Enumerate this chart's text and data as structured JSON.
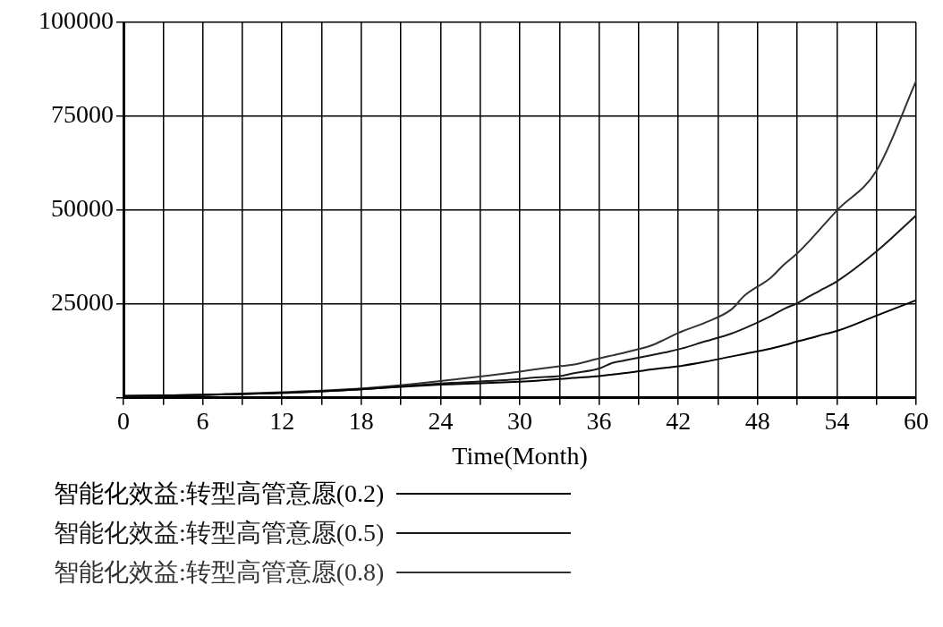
{
  "chart_data": {
    "type": "line",
    "xlabel": "Time(Month)",
    "x": [
      0,
      6,
      12,
      18,
      24,
      30,
      31,
      33,
      34,
      36,
      37,
      38,
      40,
      41,
      42,
      44,
      46,
      47,
      49,
      50,
      51,
      52,
      53,
      54,
      57,
      60
    ],
    "series": [
      {
        "name": "智能化效益:转型高管意愿(0.2)",
        "color": "#000000",
        "values": [
          500,
          800,
          1300,
          2300,
          3500,
          4300,
          4500,
          5000,
          5300,
          5800,
          6200,
          6600,
          7600,
          8000,
          8400,
          9600,
          11000,
          11700,
          13100,
          14000,
          15000,
          15900,
          16900,
          17800,
          21900,
          26000
        ]
      },
      {
        "name": "智能化效益:转型高管意愿(0.5)",
        "color": "#1a1a1a",
        "values": [
          500,
          800,
          1300,
          2300,
          3800,
          5000,
          5400,
          5800,
          6500,
          7800,
          9300,
          10000,
          11400,
          12100,
          12900,
          15000,
          17100,
          18500,
          21800,
          23700,
          25200,
          27200,
          29100,
          31000,
          39000,
          48600
        ]
      },
      {
        "name": "智能化效益:转型高管意愿(0.8)",
        "color": "#333333",
        "values": [
          500,
          800,
          1500,
          2500,
          4500,
          7000,
          7500,
          8400,
          8800,
          10500,
          11300,
          12100,
          14000,
          15600,
          17300,
          20000,
          23500,
          27200,
          32000,
          35500,
          38500,
          42100,
          46000,
          49900,
          60500,
          84400
        ]
      }
    ],
    "xlim": [
      0,
      60
    ],
    "xticks": [
      0,
      {
        "value": 3,
        "label": null
      },
      6,
      {
        "value": 9,
        "label": null
      },
      12,
      {
        "value": 15,
        "label": null
      },
      18,
      {
        "value": 21,
        "label": null
      },
      24,
      {
        "value": 27,
        "label": null
      },
      30,
      {
        "value": 33,
        "label": null
      },
      36,
      {
        "value": 39,
        "label": null
      },
      42,
      {
        "value": 45,
        "label": null
      },
      48,
      {
        "value": 51,
        "label": null
      },
      54,
      {
        "value": 57,
        "label": null
      },
      60
    ],
    "ylim": [
      0,
      100000
    ],
    "yticks": [
      {
        "value": 0,
        "label": null
      },
      25000,
      50000,
      75000,
      100000
    ],
    "grid": true,
    "legend": "bottom",
    "marker": "none",
    "line_style": "solid"
  }
}
